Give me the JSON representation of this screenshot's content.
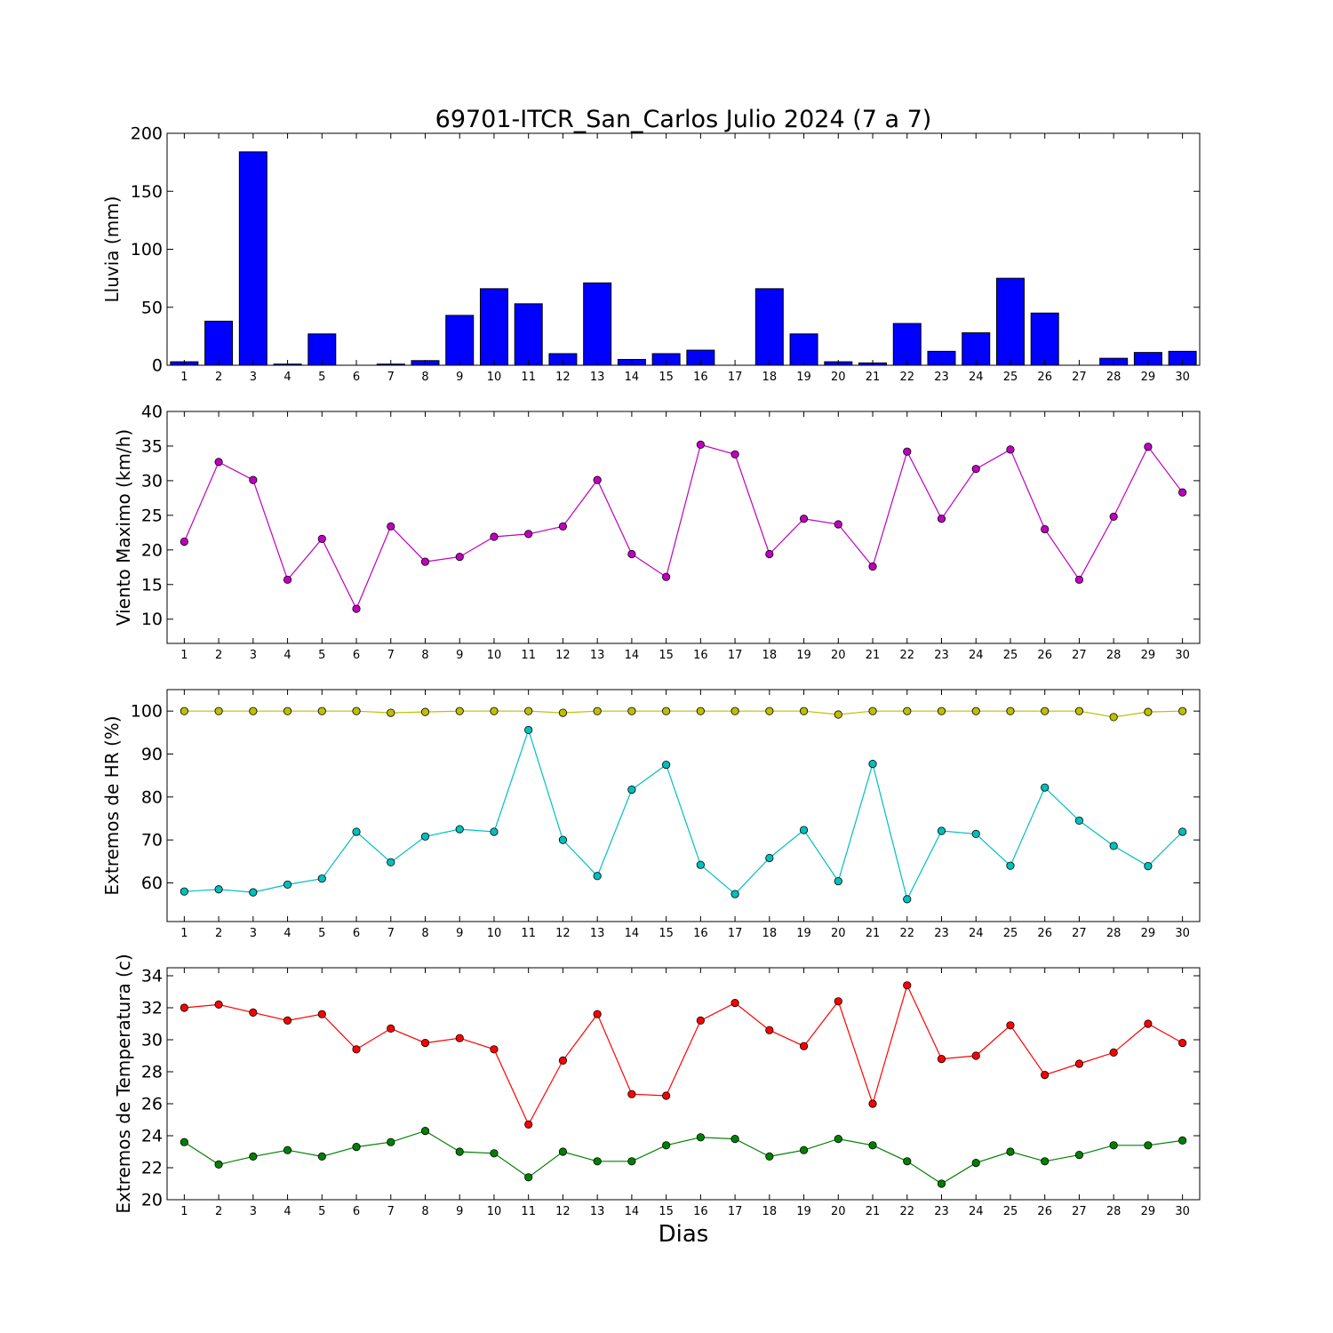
{
  "title": "69701-ITCR_San_Carlos Julio 2024  (7 a 7)",
  "xlabel": "Dias",
  "chart_data": [
    {
      "type": "bar",
      "ylabel": "Lluvia (mm)",
      "ylim": [
        0,
        200
      ],
      "yticks": [
        0,
        50,
        100,
        150,
        200
      ],
      "x": [
        1,
        2,
        3,
        4,
        5,
        6,
        7,
        8,
        9,
        10,
        11,
        12,
        13,
        14,
        15,
        16,
        17,
        18,
        19,
        20,
        21,
        22,
        23,
        24,
        25,
        26,
        27,
        28,
        29,
        30
      ],
      "series": [
        {
          "color": "#0000ff",
          "values": [
            3,
            38,
            184,
            1,
            27,
            0,
            1,
            4,
            43,
            66,
            53,
            10,
            71,
            5,
            10,
            13,
            0,
            66,
            27,
            3,
            2,
            36,
            12,
            28,
            75,
            45,
            0,
            6,
            11,
            12
          ]
        }
      ]
    },
    {
      "type": "line",
      "ylabel": "Viento Maximo (km/h)",
      "ylim": [
        6.5,
        40
      ],
      "yticks": [
        10,
        15,
        20,
        25,
        30,
        35,
        40
      ],
      "x": [
        1,
        2,
        3,
        4,
        5,
        6,
        7,
        8,
        9,
        10,
        11,
        12,
        13,
        14,
        15,
        16,
        17,
        18,
        19,
        20,
        21,
        22,
        23,
        24,
        25,
        26,
        27,
        28,
        29,
        30
      ],
      "series": [
        {
          "color": "#bf00bf",
          "values": [
            21.2,
            32.7,
            30.1,
            15.7,
            21.6,
            11.5,
            23.4,
            18.3,
            19.0,
            21.9,
            22.3,
            23.4,
            30.1,
            19.4,
            16.1,
            35.2,
            33.8,
            19.4,
            24.5,
            23.7,
            17.6,
            34.2,
            24.5,
            31.7,
            34.5,
            23.0,
            15.7,
            24.8,
            34.9,
            28.3
          ]
        }
      ]
    },
    {
      "type": "line",
      "ylabel": "Extremos de HR (%)",
      "ylim": [
        51,
        105
      ],
      "yticks": [
        60,
        70,
        80,
        90,
        100
      ],
      "x": [
        1,
        2,
        3,
        4,
        5,
        6,
        7,
        8,
        9,
        10,
        11,
        12,
        13,
        14,
        15,
        16,
        17,
        18,
        19,
        20,
        21,
        22,
        23,
        24,
        25,
        26,
        27,
        28,
        29,
        30
      ],
      "series": [
        {
          "color": "#bfbf00",
          "values": [
            100,
            100,
            100,
            100,
            100,
            100,
            99.6,
            99.8,
            100,
            100,
            100,
            99.6,
            100,
            100,
            100,
            100,
            100,
            100,
            100,
            99.2,
            100,
            100,
            100,
            100,
            100,
            100,
            100,
            98.6,
            99.8,
            100
          ]
        },
        {
          "color": "#00bfbf",
          "values": [
            58.0,
            58.5,
            57.8,
            59.6,
            61.0,
            71.9,
            64.8,
            70.8,
            72.5,
            71.9,
            95.6,
            70.0,
            61.6,
            81.7,
            87.5,
            64.2,
            57.4,
            65.8,
            72.3,
            60.4,
            87.7,
            56.2,
            72.1,
            71.4,
            64.0,
            82.2,
            74.5,
            68.6,
            63.9,
            71.9
          ]
        }
      ]
    },
    {
      "type": "line",
      "ylabel": "Extremos de Temperatura (c)",
      "ylim": [
        20,
        34.5
      ],
      "yticks": [
        20,
        22,
        24,
        26,
        28,
        30,
        32,
        34
      ],
      "x": [
        1,
        2,
        3,
        4,
        5,
        6,
        7,
        8,
        9,
        10,
        11,
        12,
        13,
        14,
        15,
        16,
        17,
        18,
        19,
        20,
        21,
        22,
        23,
        24,
        25,
        26,
        27,
        28,
        29,
        30
      ],
      "series": [
        {
          "color": "#ff0000",
          "values": [
            32.0,
            32.2,
            31.7,
            31.2,
            31.6,
            29.4,
            30.7,
            29.8,
            30.1,
            29.4,
            24.7,
            28.7,
            31.6,
            26.6,
            26.5,
            31.2,
            32.3,
            30.6,
            29.6,
            32.4,
            26.0,
            33.4,
            28.8,
            29.0,
            30.9,
            27.8,
            28.5,
            29.2,
            31.0,
            29.8
          ]
        },
        {
          "color": "#008000",
          "values": [
            23.6,
            22.2,
            22.7,
            23.1,
            22.7,
            23.3,
            23.6,
            24.3,
            23.0,
            22.9,
            21.4,
            23.0,
            22.4,
            22.4,
            23.4,
            23.9,
            23.8,
            22.7,
            23.1,
            23.8,
            23.4,
            22.4,
            21.0,
            22.3,
            23.0,
            22.4,
            22.8,
            23.4,
            23.4,
            23.7
          ]
        }
      ]
    }
  ]
}
